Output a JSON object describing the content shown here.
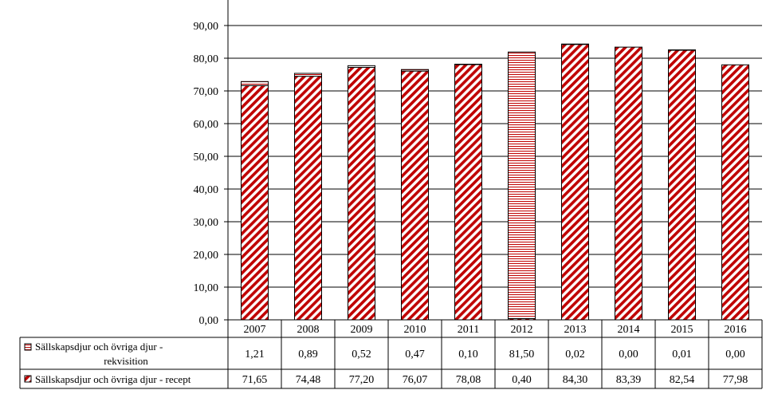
{
  "chart_data": {
    "type": "bar",
    "stacked": true,
    "title": "",
    "xlabel": "",
    "ylabel": "",
    "ylim": [
      0,
      90
    ],
    "yticks": [
      "0,00",
      "10,00",
      "20,00",
      "30,00",
      "40,00",
      "50,00",
      "60,00",
      "70,00",
      "80,00",
      "90,00"
    ],
    "ytick_values": [
      0,
      10,
      20,
      30,
      40,
      50,
      60,
      70,
      80,
      90
    ],
    "grid": true,
    "legend": "data-table-left",
    "categories": [
      "2007",
      "2008",
      "2009",
      "2010",
      "2011",
      "2012",
      "2013",
      "2014",
      "2015",
      "2016"
    ],
    "series": [
      {
        "name": "Sällskapsdjur och övriga djur - rekvisition",
        "name_lines": [
          "Sällskapsdjur och övriga djur -",
          "rekvisition"
        ],
        "pattern": "horizontal-lines",
        "color": "#c00000",
        "values": [
          1.21,
          0.89,
          0.52,
          0.47,
          0.1,
          81.5,
          0.02,
          0.0,
          0.01,
          0.0
        ],
        "labels": [
          "1,21",
          "0,89",
          "0,52",
          "0,47",
          "0,10",
          "81,50",
          "0,02",
          "0,00",
          "0,01",
          "0,00"
        ]
      },
      {
        "name": "Sällskapsdjur och övriga djur - recept",
        "name_lines": [
          "Sällskapsdjur och övriga djur - recept"
        ],
        "pattern": "diagonal-stripes",
        "color": "#c00000",
        "values": [
          71.65,
          74.48,
          77.2,
          76.07,
          78.08,
          0.4,
          84.3,
          83.39,
          82.54,
          77.98
        ],
        "labels": [
          "71,65",
          "74,48",
          "77,20",
          "76,07",
          "78,08",
          "0,40",
          "84,30",
          "83,39",
          "82,54",
          "77,98"
        ]
      }
    ]
  }
}
